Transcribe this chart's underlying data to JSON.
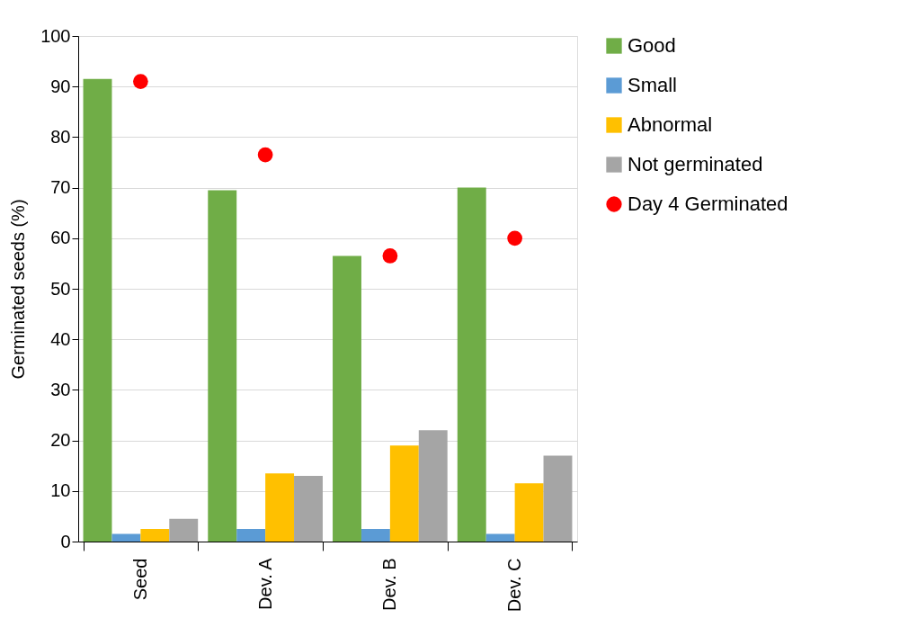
{
  "chart_data": {
    "type": "bar",
    "ylabel": "Germinated seeds (%)",
    "categories": [
      "Seed",
      "Dev. A",
      "Dev. B",
      "Dev. C"
    ],
    "ylim": [
      0,
      100
    ],
    "yticks": [
      0,
      10,
      20,
      30,
      40,
      50,
      60,
      70,
      80,
      90,
      100
    ],
    "grid": "y",
    "legend": "right",
    "series": [
      {
        "name": "Good",
        "color": "#70ad47",
        "values": [
          91.5,
          69.5,
          56.5,
          70
        ]
      },
      {
        "name": "Small",
        "color": "#5b9bd5",
        "values": [
          1.5,
          2.5,
          2.5,
          1.5
        ]
      },
      {
        "name": "Abnormal",
        "color": "#ffc000",
        "values": [
          2.5,
          13.5,
          19,
          11.5
        ]
      },
      {
        "name": "Not germinated",
        "color": "#a5a5a5",
        "values": [
          4.5,
          13,
          22,
          17
        ]
      },
      {
        "name": "Day 4 Germinated",
        "color": "#ff0000",
        "type": "scatter",
        "values": [
          91,
          76.5,
          56.5,
          60
        ]
      }
    ]
  }
}
